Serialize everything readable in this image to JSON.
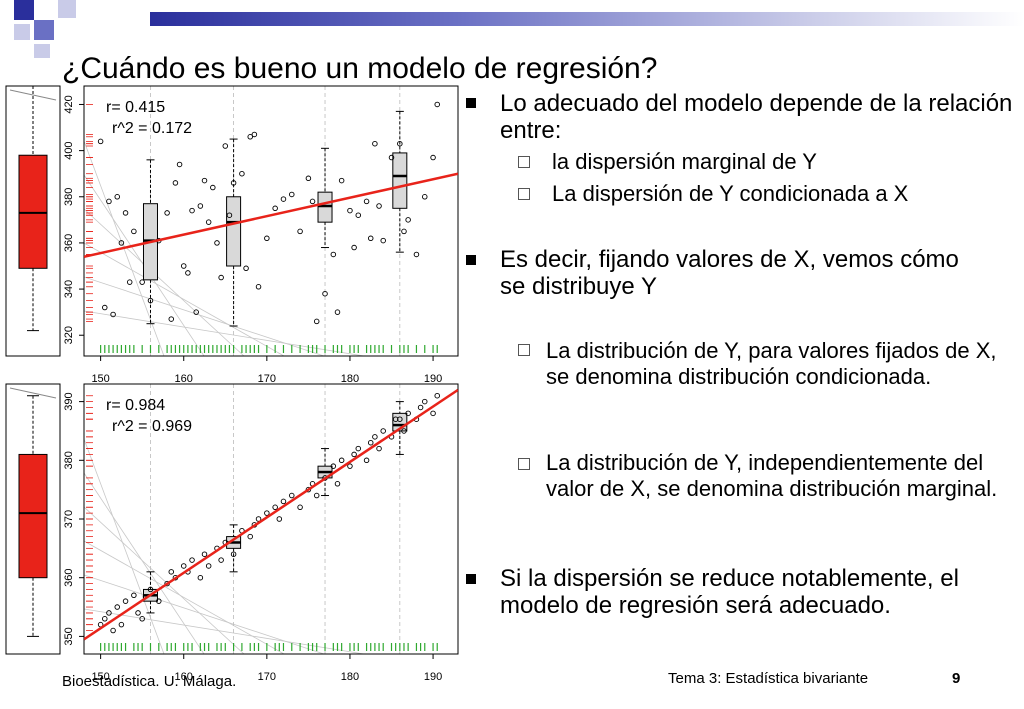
{
  "slide": {
    "title": "¿Cuándo es bueno un modelo de regresión?",
    "footer_left": "Bioestadística. U. Málaga.",
    "footer_center": "Tema 3: Estadística bivariante",
    "page_number": "9",
    "accent_color": "#2a2f9c"
  },
  "bullets": {
    "b1": "Lo adecuado del modelo depende de la relación entre:",
    "b1_sub1": "la dispersión marginal de Y",
    "b1_sub2": "La dispersión de Y condicionada a X",
    "b2": "Es decir, fijando valores de X, vemos cómo se distribuye Y",
    "b2_sub1": "La distribución de Y, para valores fijados de X, se denomina distribución condicionada.",
    "b2_sub2": "La distribución de Y, independientemente del valor de X, se denomina distribución marginal.",
    "b3": "Si la dispersión se reduce notablemente, el modelo de regresión será adecuado."
  },
  "chart_data": [
    {
      "type": "scatter",
      "title": "",
      "annotations": [
        "r= 0.415",
        "r^2 = 0.172"
      ],
      "xlim": [
        148,
        193
      ],
      "ylim": [
        311,
        428
      ],
      "xticks": [
        150,
        160,
        170,
        180,
        190
      ],
      "yticks": [
        320,
        340,
        360,
        380,
        400,
        420
      ],
      "regression_line": {
        "x": [
          148,
          193
        ],
        "y": [
          354,
          390
        ],
        "color": "#e8231a"
      },
      "boxplots": [
        {
          "x": 156,
          "min": 325,
          "q1": 344,
          "median": 361,
          "q3": 377,
          "max": 396
        },
        {
          "x": 166,
          "min": 324,
          "q1": 350,
          "median": 369,
          "q3": 380,
          "max": 405
        },
        {
          "x": 177,
          "min": 358,
          "q1": 369,
          "median": 376,
          "q3": 382,
          "max": 401
        },
        {
          "x": 186,
          "min": 356,
          "q1": 375,
          "median": 389,
          "q3": 399,
          "max": 417
        }
      ],
      "marginal_boxplot": {
        "min": 322,
        "q1": 349,
        "median": 373,
        "q3": 398,
        "max": 428,
        "color": "#e8231a"
      },
      "points": [
        [
          150,
          404
        ],
        [
          150.5,
          332
        ],
        [
          151,
          378
        ],
        [
          151.5,
          329
        ],
        [
          152,
          380
        ],
        [
          152.5,
          360
        ],
        [
          153,
          373
        ],
        [
          153.5,
          343
        ],
        [
          154,
          365
        ],
        [
          155,
          343
        ],
        [
          156,
          335
        ],
        [
          157,
          361
        ],
        [
          158,
          373
        ],
        [
          158.5,
          327
        ],
        [
          159,
          386
        ],
        [
          159.5,
          394
        ],
        [
          160,
          350
        ],
        [
          160.5,
          347
        ],
        [
          161,
          374
        ],
        [
          161.5,
          330
        ],
        [
          162,
          376
        ],
        [
          162.5,
          387
        ],
        [
          163,
          369
        ],
        [
          163.5,
          384
        ],
        [
          164,
          360
        ],
        [
          164.5,
          345
        ],
        [
          165,
          402
        ],
        [
          165.5,
          372
        ],
        [
          166,
          386
        ],
        [
          167,
          390
        ],
        [
          167.5,
          349
        ],
        [
          168,
          406
        ],
        [
          168.5,
          407
        ],
        [
          169,
          341
        ],
        [
          170,
          362
        ],
        [
          171,
          375
        ],
        [
          172,
          379
        ],
        [
          173,
          381
        ],
        [
          174,
          365
        ],
        [
          175,
          388
        ],
        [
          175.5,
          378
        ],
        [
          176,
          326
        ],
        [
          177,
          338
        ],
        [
          178,
          355
        ],
        [
          178.5,
          330
        ],
        [
          179,
          387
        ],
        [
          180,
          374
        ],
        [
          180.5,
          358
        ],
        [
          181,
          372
        ],
        [
          182,
          378
        ],
        [
          182.5,
          362
        ],
        [
          183,
          403
        ],
        [
          183.5,
          376
        ],
        [
          184,
          361
        ],
        [
          185,
          397
        ],
        [
          186,
          403
        ],
        [
          186.5,
          365
        ],
        [
          187,
          370
        ],
        [
          188,
          355
        ],
        [
          189,
          380
        ],
        [
          190,
          397
        ],
        [
          190.5,
          420
        ]
      ]
    },
    {
      "type": "scatter",
      "title": "",
      "annotations": [
        "r= 0.984",
        "r^2 = 0.969"
      ],
      "xlim": [
        148,
        193
      ],
      "ylim": [
        347,
        393
      ],
      "xticks": [
        150,
        160,
        170,
        180,
        190
      ],
      "yticks": [
        350,
        360,
        370,
        380,
        390
      ],
      "regression_line": {
        "x": [
          148,
          193
        ],
        "y": [
          349.5,
          392
        ],
        "color": "#e8231a"
      },
      "boxplots": [
        {
          "x": 156,
          "min": 354,
          "q1": 356,
          "median": 357,
          "q3": 358,
          "max": 361
        },
        {
          "x": 166,
          "min": 361,
          "q1": 365,
          "median": 366,
          "q3": 367,
          "max": 369
        },
        {
          "x": 177,
          "min": 374,
          "q1": 377,
          "median": 378,
          "q3": 379,
          "max": 382
        },
        {
          "x": 186,
          "min": 381,
          "q1": 385,
          "median": 386,
          "q3": 388,
          "max": 390
        }
      ],
      "marginal_boxplot": {
        "min": 350,
        "q1": 360,
        "median": 371,
        "q3": 381,
        "max": 391,
        "color": "#e8231a"
      },
      "points": [
        [
          150,
          352
        ],
        [
          150.5,
          353
        ],
        [
          151,
          354
        ],
        [
          151.5,
          351
        ],
        [
          152,
          355
        ],
        [
          152.5,
          352
        ],
        [
          153,
          356
        ],
        [
          154,
          357
        ],
        [
          154.5,
          354
        ],
        [
          155,
          353
        ],
        [
          156,
          358
        ],
        [
          157,
          356
        ],
        [
          158,
          359
        ],
        [
          158.5,
          361
        ],
        [
          159,
          360
        ],
        [
          160,
          362
        ],
        [
          160.5,
          361
        ],
        [
          161,
          363
        ],
        [
          162,
          360
        ],
        [
          162.5,
          364
        ],
        [
          163,
          362
        ],
        [
          164,
          365
        ],
        [
          164.5,
          363
        ],
        [
          165,
          366
        ],
        [
          166,
          364
        ],
        [
          167,
          368
        ],
        [
          168,
          367
        ],
        [
          168.5,
          369
        ],
        [
          169,
          370
        ],
        [
          170,
          371
        ],
        [
          171,
          372
        ],
        [
          171.5,
          370
        ],
        [
          172,
          373
        ],
        [
          173,
          374
        ],
        [
          174,
          372
        ],
        [
          175,
          375
        ],
        [
          175.5,
          376
        ],
        [
          176,
          374
        ],
        [
          177,
          377
        ],
        [
          178,
          379
        ],
        [
          178.5,
          376
        ],
        [
          179,
          380
        ],
        [
          180,
          379
        ],
        [
          180.5,
          381
        ],
        [
          181,
          382
        ],
        [
          182,
          380
        ],
        [
          182.5,
          383
        ],
        [
          183,
          384
        ],
        [
          183.5,
          382
        ],
        [
          184,
          385
        ],
        [
          185,
          384
        ],
        [
          185.5,
          387
        ],
        [
          186,
          387
        ],
        [
          186.5,
          385
        ],
        [
          187,
          388
        ],
        [
          188,
          387
        ],
        [
          188.5,
          389
        ],
        [
          189,
          390
        ],
        [
          190,
          388
        ],
        [
          190.5,
          391
        ]
      ]
    }
  ]
}
